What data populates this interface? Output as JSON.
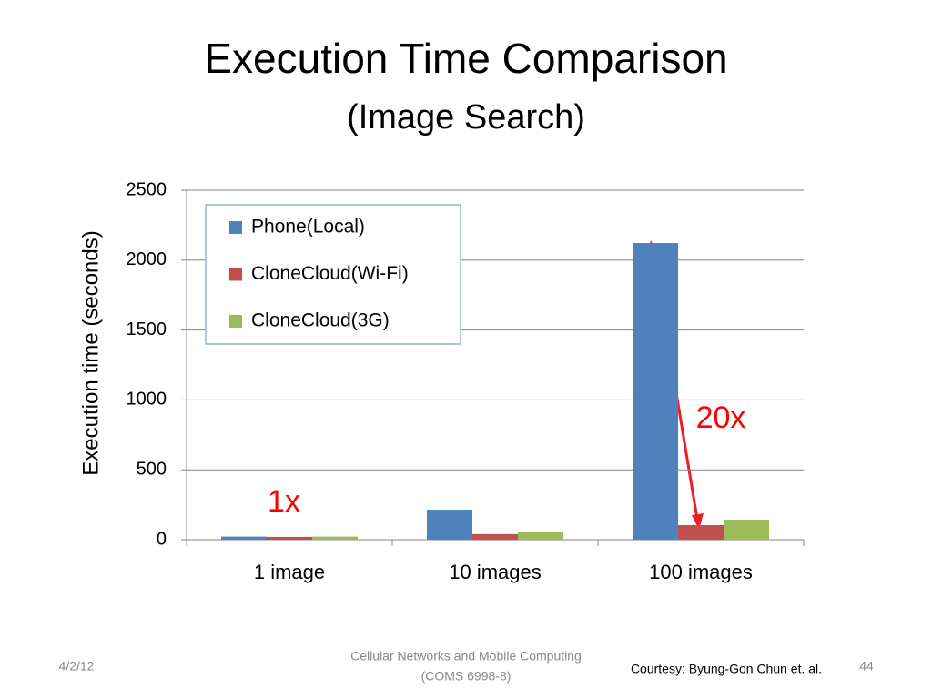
{
  "chart_data": {
    "type": "bar",
    "title": "Execution Time Comparison",
    "subtitle": "(Image Search)",
    "y_label": "Execution time (seconds)",
    "categories": [
      "1 image",
      "10 images",
      "100 images"
    ],
    "series": [
      {
        "name": "Phone(Local)",
        "color": "#4f81bd",
        "values": [
          22,
          215,
          2122
        ]
      },
      {
        "name": "CloneCloud(Wi-Fi)",
        "color": "#c0504d",
        "values": [
          20,
          40,
          104
        ]
      },
      {
        "name": "CloneCloud(3G)",
        "color": "#9bbb59",
        "values": [
          22,
          58,
          143
        ]
      }
    ],
    "ylim": [
      0,
      2500
    ],
    "yticks": [
      0,
      500,
      1000,
      1500,
      2000,
      2500
    ],
    "grid": true,
    "legend": "top-left",
    "annotations": [
      "1x",
      "20x"
    ]
  },
  "slide": {
    "date": "4/2/12",
    "footer": [
      "Cellular Networks and Mobile Computing",
      "(COMS 6998-8)"
    ],
    "courtesy": "Courtesy: Byung-Gon Chun et. al.",
    "page": "44"
  }
}
